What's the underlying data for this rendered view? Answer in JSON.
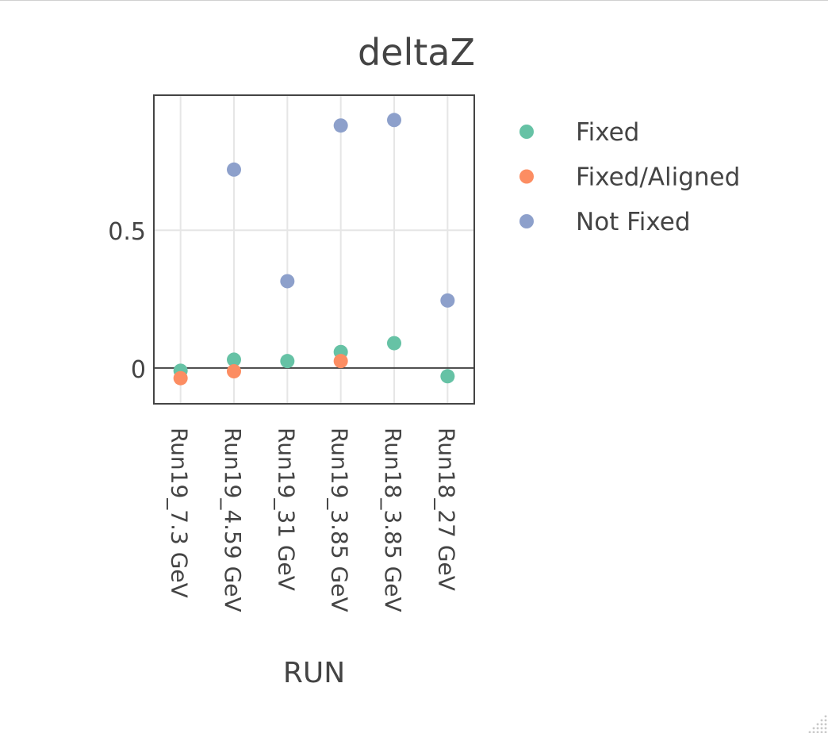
{
  "chart_data": {
    "type": "scatter",
    "title": "deltaZ",
    "xlabel": "RUN",
    "ylabel": "",
    "categories": [
      "Run19_7.3 GeV",
      "Run19_4.59 GeV",
      "Run19_31 GeV",
      "Run19_3.85 GeV",
      "Run18_3.85 GeV",
      "Run18_27 GeV"
    ],
    "ylim": [
      -0.13,
      0.99
    ],
    "yticks": [
      0,
      0.5
    ],
    "ytick_labels": [
      "0",
      "0.5"
    ],
    "grid": true,
    "zero_line": true,
    "legend_position": "right",
    "series": [
      {
        "name": "Fixed",
        "color": "#66c2a5",
        "values": [
          -0.01,
          0.03,
          0.025,
          0.058,
          0.09,
          -0.03
        ]
      },
      {
        "name": "Fixed/Aligned",
        "color": "#fc8d62",
        "values": [
          -0.037,
          -0.012,
          null,
          0.025,
          null,
          null
        ]
      },
      {
        "name": "Not Fixed",
        "color": "#8da0cb",
        "values": [
          null,
          0.72,
          0.315,
          0.88,
          0.9,
          0.245
        ]
      }
    ]
  }
}
